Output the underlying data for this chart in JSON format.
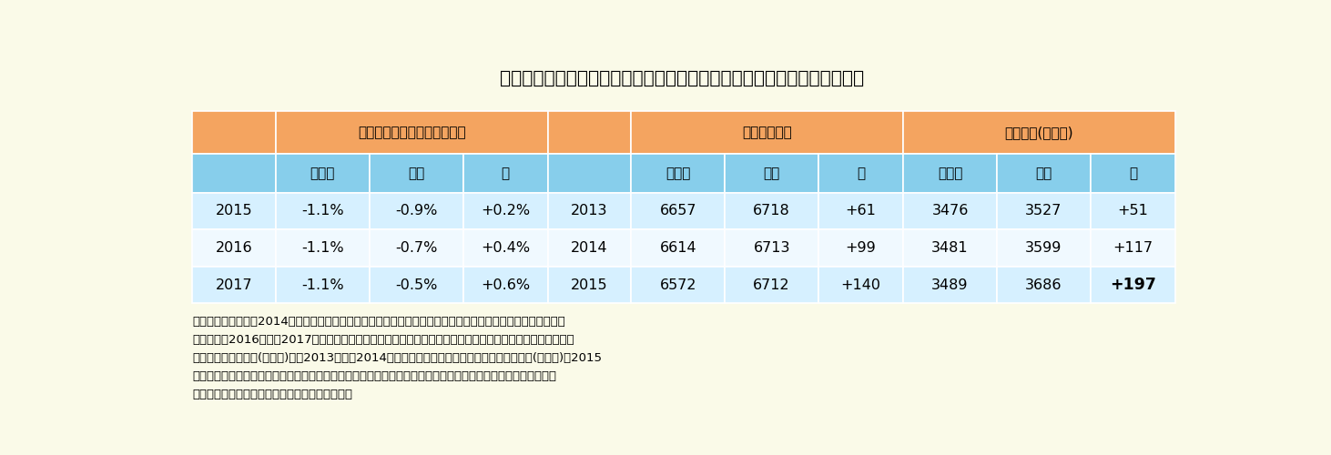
{
  "title": "図表１　マクロ経済スライドの調整率と公的年金加入者数（万人）の推移",
  "bg_color": "#FAFAE8",
  "orange_header": "#F4A460",
  "blue_subheader": "#87CEEB",
  "light_blue_row": "#D6F0FF",
  "white_row": "#F0F9FF",
  "section1_header": "マクロ経済スライドの調整率",
  "section2_header": "公的年金全体",
  "section3_header": "厚生年金(会社員)",
  "sub1": "見通し",
  "sub2": "実績",
  "sub3": "差",
  "rows": [
    {
      "year": "2015",
      "macro_year": "2013",
      "slide_mitsumori": "-1.1%",
      "slide_jisseki": "-0.9%",
      "slide_sa": "+0.2%",
      "kotek_mitsumori": "6657",
      "kotek_jisseki": "6718",
      "kotek_sa": "+61",
      "kousei_mitsumori": "3476",
      "kousei_jisseki": "3527",
      "kousei_sa": "+51",
      "sa_bold": false
    },
    {
      "year": "2016",
      "macro_year": "2014",
      "slide_mitsumori": "-1.1%",
      "slide_jisseki": "-0.7%",
      "slide_sa": "+0.4%",
      "kotek_mitsumori": "6614",
      "kotek_jisseki": "6713",
      "kotek_sa": "+99",
      "kousei_mitsumori": "3481",
      "kousei_jisseki": "3599",
      "kousei_sa": "+117",
      "sa_bold": false
    },
    {
      "year": "2017",
      "macro_year": "2015",
      "slide_mitsumori": "-1.1%",
      "slide_jisseki": "-0.5%",
      "slide_sa": "+0.6%",
      "kotek_mitsumori": "6572",
      "kotek_jisseki": "6712",
      "kotek_sa": "+140",
      "kousei_mitsumori": "3489",
      "kousei_jisseki": "3686",
      "kousei_sa": "+197",
      "sa_bold": true
    }
  ],
  "notes": [
    "（注１）　見通しは2014年財政検証の労働参加が進むケース。調整率は年度。加入者数は年度末。以下同じ。",
    "（注２）　2016年度と2017年度は特例に該当したため、マクロ経済スライドは実際には適用されなかった。",
    "（注３）　厚生年金(会社員)は、2013年度と2014年度は被用者年金一元化前の厚生年金加入者(会社員)、2015",
    "　　　　年度は被用者年金一元化後の厚生年金第１号加入者（一元化前の厚生年金加入者に相当）。以下同じ。",
    "（資料）　厚生労働省ホームページ。以下同じ。"
  ]
}
